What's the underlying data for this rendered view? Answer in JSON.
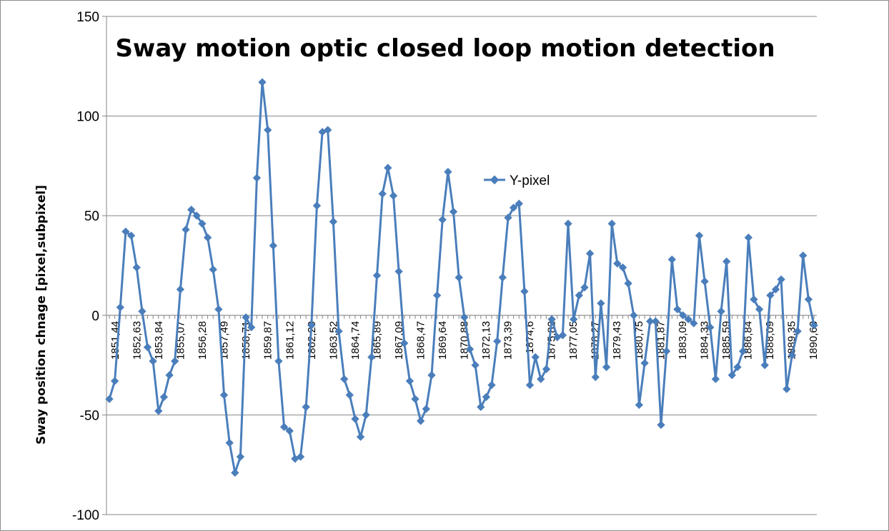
{
  "chart_data": {
    "type": "line",
    "title": "Sway motion optic closed loop motion detection",
    "xlabel": "",
    "ylabel": "Sway position chnage [pixel,subpixel]",
    "ylim": [
      -100,
      150
    ],
    "yticks": [
      -100,
      -50,
      0,
      50,
      100,
      150
    ],
    "grid": "horizontal",
    "legend_position": "inside-upper-middle",
    "series_color": "#4a7ebb",
    "x_tick_labels": [
      "1851,44",
      "1852,63",
      "1853,84",
      "1855,07",
      "1856,28",
      "1857,49",
      "1858,71",
      "1859,87",
      "1861,12",
      "1862,29",
      "1863,52",
      "1864,74",
      "1865,89",
      "1867,09",
      "1868,47",
      "1869,64",
      "1870,88",
      "1872,13",
      "1873,39",
      "1874,6",
      "1875,82",
      "1877,05",
      "1878,27",
      "1879,43",
      "1880,75",
      "1881,87",
      "1883,09",
      "1884,33",
      "1885,59",
      "1886,84",
      "1888,09",
      "1889,35",
      "1890,63"
    ],
    "series": [
      {
        "name": "Y-pixel",
        "values": [
          -42,
          -33,
          4,
          42,
          40,
          24,
          2,
          -16,
          -23,
          -48,
          -41,
          -30,
          -23,
          13,
          43,
          53,
          50,
          46,
          39,
          23,
          3,
          -40,
          -64,
          -79,
          -71,
          -1,
          -6,
          69,
          117,
          93,
          35,
          -23,
          -56,
          -58,
          -72,
          -71,
          -46,
          -5,
          55,
          92,
          93,
          47,
          -8,
          -32,
          -40,
          -52,
          -61,
          -50,
          -21,
          20,
          61,
          74,
          60,
          22,
          -14,
          -33,
          -42,
          -53,
          -47,
          -30,
          10,
          48,
          72,
          52,
          19,
          -1,
          -17,
          -25,
          -46,
          -41,
          -35,
          -13,
          19,
          49,
          54,
          56,
          12,
          -35,
          -21,
          -32,
          -27,
          -2,
          -11,
          -10,
          46,
          -2,
          10,
          14,
          31,
          -31,
          6,
          -26,
          46,
          26,
          24,
          16,
          0,
          -45,
          -24,
          -3,
          -3,
          -55,
          -18,
          28,
          3,
          0,
          -2,
          -4,
          40,
          17,
          -6,
          -32,
          2,
          27,
          -30,
          -26,
          -18,
          39,
          8,
          3,
          -25,
          10,
          13,
          18,
          -37,
          -20,
          -8,
          30,
          8,
          -5
        ]
      }
    ]
  }
}
